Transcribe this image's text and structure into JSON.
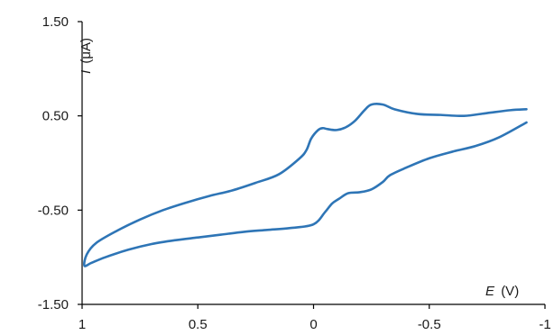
{
  "chart_data": {
    "type": "line",
    "title": "",
    "xlabel_italic": "E",
    "xlabel_unit": "(V)",
    "ylabel_italic": "I",
    "ylabel_unit": "(μA)",
    "xlim": [
      1,
      -1
    ],
    "ylim": [
      -1.5,
      1.5
    ],
    "x_ticks": [
      1,
      0.5,
      0,
      -0.5,
      -1
    ],
    "x_tick_labels": [
      "1",
      "0.5",
      "0",
      "-0.5",
      "-1"
    ],
    "y_ticks": [
      1.5,
      0.5,
      -0.5,
      -1.5
    ],
    "y_tick_labels": [
      "1.50",
      "0.50",
      "-0.50",
      "-1.50"
    ],
    "grid": false,
    "series": [
      {
        "color": "#2e75b6",
        "x": [
          -0.92,
          -0.8,
          -0.7,
          -0.6,
          -0.5,
          -0.4,
          -0.33,
          -0.3,
          -0.25,
          -0.2,
          -0.15,
          -0.11,
          -0.08,
          -0.05,
          0,
          0.1,
          0.2,
          0.3,
          0.4,
          0.5,
          0.6,
          0.7,
          0.8,
          0.9,
          0.96,
          0.99,
          0.98,
          0.94,
          0.85,
          0.75,
          0.65,
          0.55,
          0.45,
          0.35,
          0.25,
          0.15,
          0.06,
          0.03,
          0.01,
          -0.02,
          -0.04,
          -0.06,
          -0.1,
          -0.14,
          -0.18,
          -0.22,
          -0.25,
          -0.3,
          -0.35,
          -0.45,
          -0.55,
          -0.65,
          -0.75,
          -0.85,
          -0.92
        ],
        "y": [
          0.43,
          0.27,
          0.18,
          0.12,
          0.05,
          -0.05,
          -0.13,
          -0.2,
          -0.28,
          -0.31,
          -0.32,
          -0.38,
          -0.43,
          -0.52,
          -0.65,
          -0.69,
          -0.71,
          -0.73,
          -0.76,
          -0.79,
          -0.82,
          -0.86,
          -0.92,
          -1.0,
          -1.06,
          -1.09,
          -0.97,
          -0.85,
          -0.72,
          -0.6,
          -0.5,
          -0.42,
          -0.35,
          -0.29,
          -0.21,
          -0.12,
          0.05,
          0.14,
          0.26,
          0.35,
          0.37,
          0.36,
          0.35,
          0.38,
          0.45,
          0.56,
          0.62,
          0.62,
          0.57,
          0.52,
          0.51,
          0.5,
          0.53,
          0.56,
          0.57
        ]
      }
    ]
  }
}
